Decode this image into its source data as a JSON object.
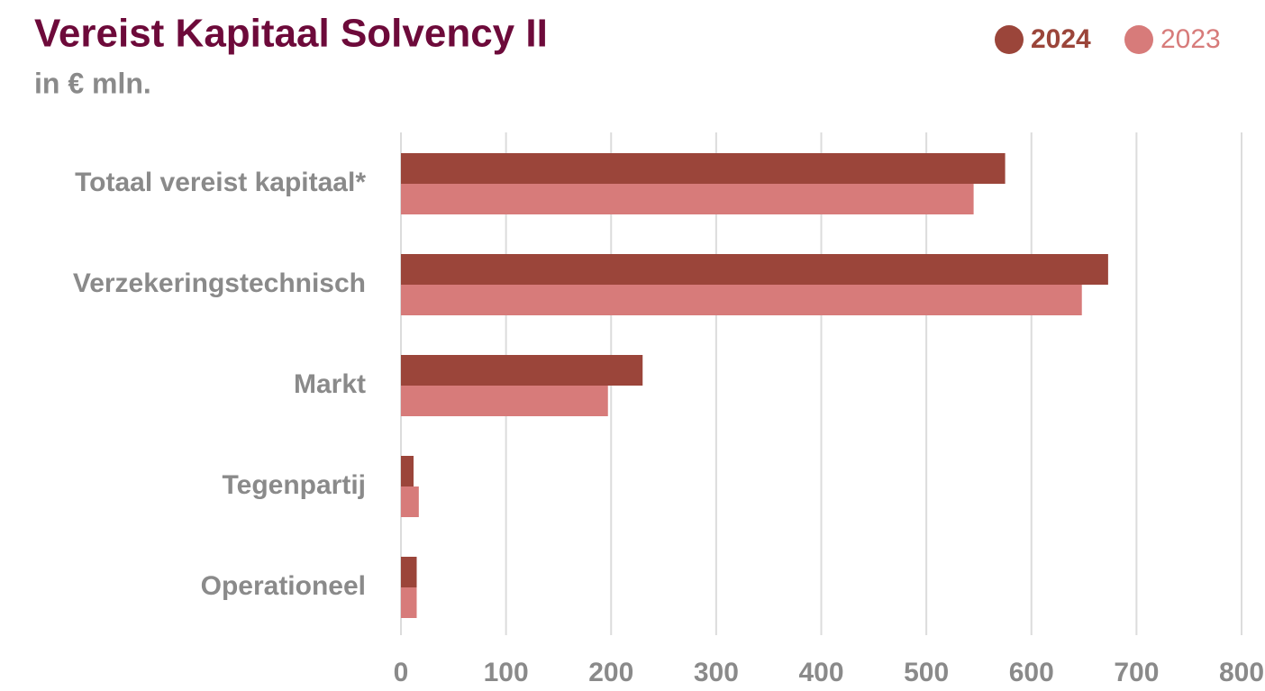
{
  "chart_data": {
    "type": "hbar",
    "title": "Vereist Kapitaal Solvency II",
    "subtitle": "in € mln.",
    "categories": [
      "Totaal vereist kapitaal*",
      "Verzekeringstechnisch",
      "Markt",
      "Tegenpartij",
      "Operationeel"
    ],
    "series": [
      {
        "name": "2024",
        "color": "#9b453a",
        "values": [
          575,
          673,
          230,
          12,
          15
        ]
      },
      {
        "name": "2023",
        "color": "#d77b7a",
        "values": [
          545,
          648,
          197,
          17,
          15
        ]
      }
    ],
    "xlim": [
      0,
      800
    ],
    "xticks": [
      0,
      100,
      200,
      300,
      400,
      500,
      600,
      700,
      800
    ],
    "grid": true,
    "legend": "top-right"
  }
}
